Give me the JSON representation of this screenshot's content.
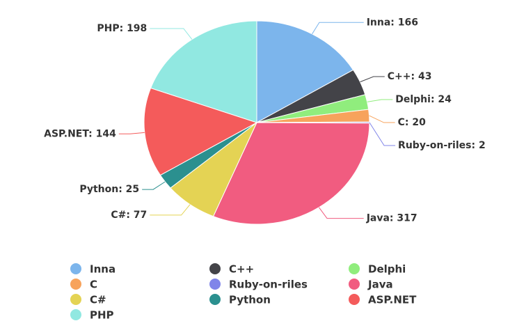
{
  "chart_data": {
    "type": "pie",
    "categories": [
      "Inna",
      "C++",
      "Delphi",
      "C",
      "Ruby-on-riles",
      "Java",
      "C#",
      "Python",
      "ASP.NET",
      "PHP"
    ],
    "values": [
      166,
      43,
      24,
      20,
      2,
      317,
      77,
      25,
      144,
      198
    ],
    "value_labels": [
      "Inna: 166",
      "C++: 43",
      "Delphi: 24",
      "C: 20",
      "Ruby-on-riles: 2",
      "Java: 317",
      "C#: 77",
      "Python: 25",
      "ASP.NET: 144",
      "PHP: 198"
    ],
    "colors": [
      "#7cb5ec",
      "#434348",
      "#90ed7d",
      "#f7a35c",
      "#8085e9",
      "#f15c80",
      "#e4d354",
      "#2b908f",
      "#f45b5b",
      "#91e8e1"
    ],
    "legend": "bottom"
  }
}
